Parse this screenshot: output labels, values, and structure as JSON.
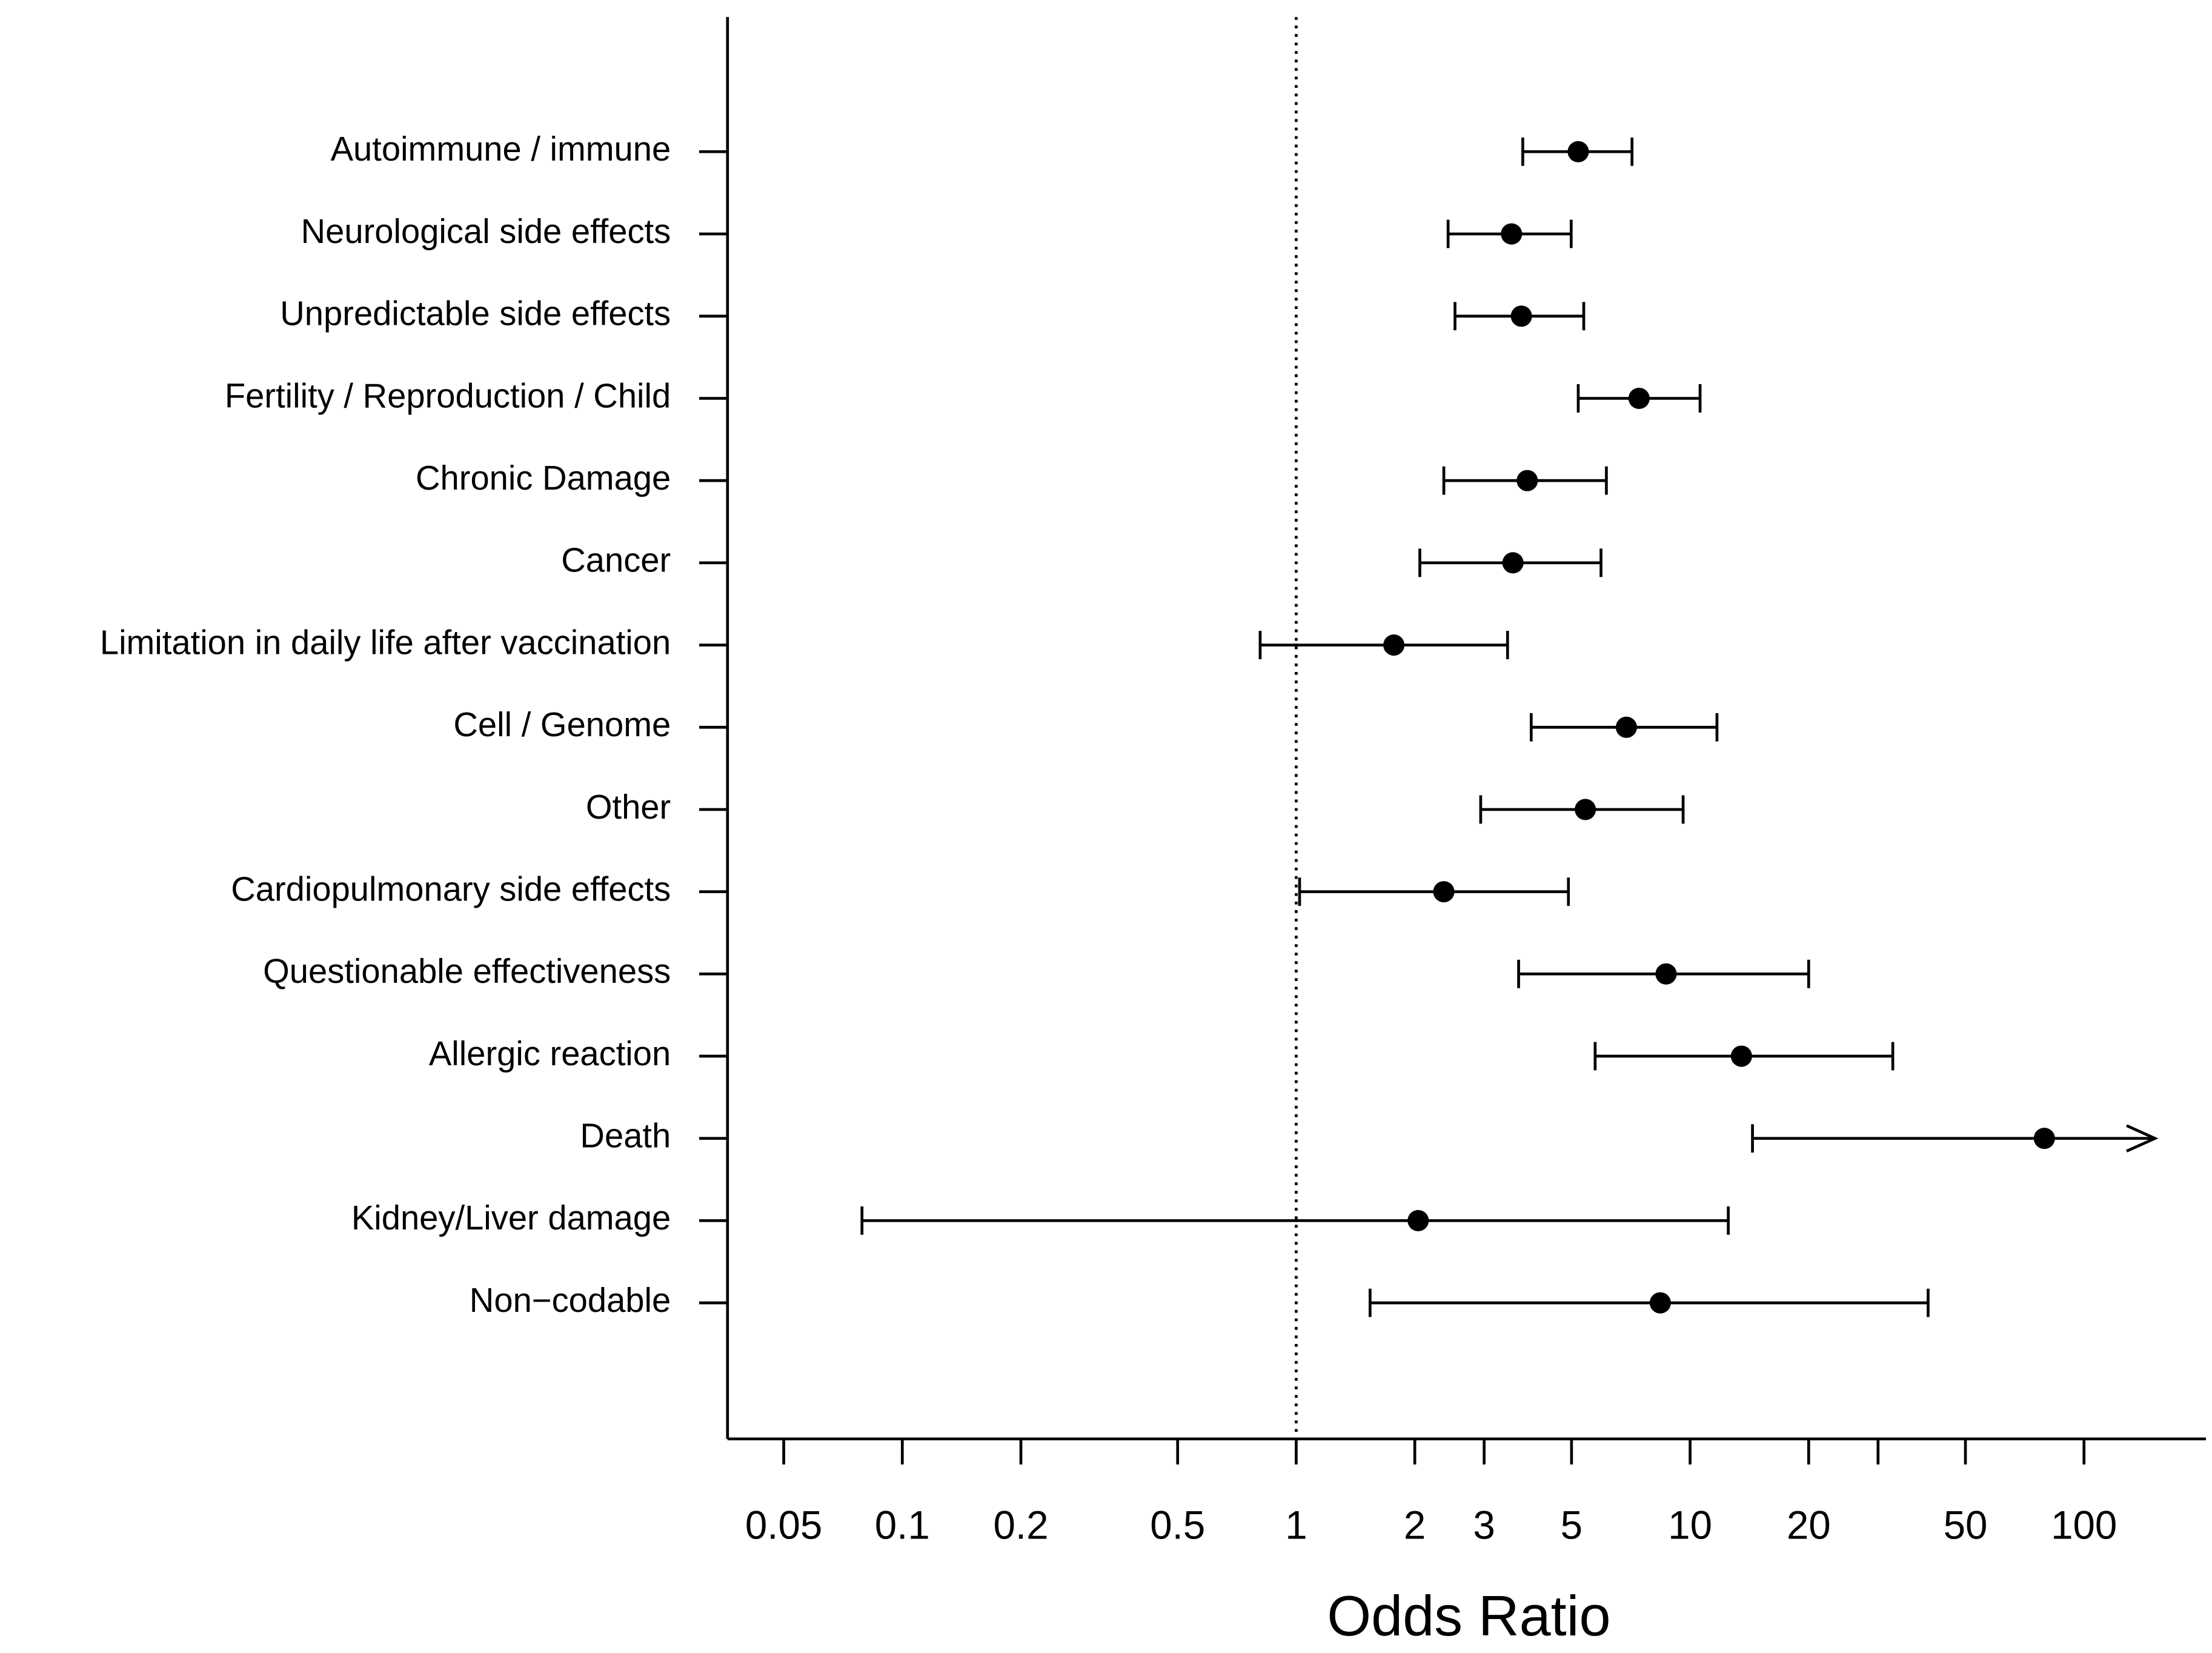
{
  "chart_data": {
    "type": "forest",
    "x_label": "Odds Ratio",
    "categories": [
      "Autoimmune / immune",
      "Neurological side effects",
      "Unpredictable side effects",
      "Fertility / Reproduction / Child",
      "Chronic Damage",
      "Cancer",
      "Limitation in daily life after vaccination",
      "Cell / Genome",
      "Other",
      "Cardiopulmonary side effects",
      "Questionable effectiveness",
      "Allergic reaction",
      "Death",
      "Kidney/Liver damage",
      "Non−codable"
    ],
    "values": [
      5.2,
      3.52,
      3.73,
      7.42,
      3.86,
      3.55,
      1.77,
      6.89,
      5.42,
      2.37,
      8.69,
      13.5,
      79.3,
      2.04,
      8.4
    ],
    "lower": [
      3.76,
      2.43,
      2.53,
      5.2,
      2.37,
      2.06,
      0.81,
      3.95,
      2.94,
      1.02,
      3.67,
      5.74,
      14.4,
      0.079,
      1.54
    ],
    "upper": [
      7.12,
      4.99,
      5.37,
      10.6,
      6.13,
      5.94,
      3.44,
      11.7,
      9.6,
      4.91,
      20.0,
      32.7,
      null,
      12.5,
      40.2
    ],
    "color": "#000000",
    "log_x": true,
    "xlim": [
      0.036,
      204
    ],
    "xticks": [
      0.05,
      0.1,
      0.2,
      0.5,
      1,
      2,
      3,
      5,
      10,
      20,
      {
        "value": 30,
        "label": null
      },
      50,
      100
    ],
    "reference_line": 1
  }
}
